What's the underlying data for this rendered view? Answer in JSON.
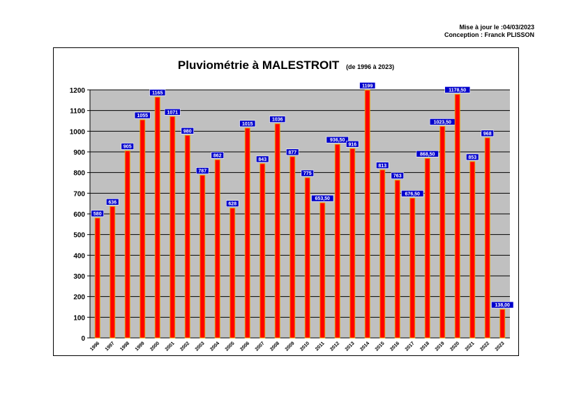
{
  "meta": {
    "updated": "Mise à jour le :04/03/2023",
    "author": "Conception : Franck PLISSON"
  },
  "colors": {
    "plot_bg": "#c0c0c0",
    "bar_fill": "#ff0000",
    "bar_stroke": "#e8a000",
    "label_bg": "#0000cc",
    "label_text": "#ffffff",
    "grid": "#000000"
  },
  "chart_data": {
    "type": "bar",
    "title": "Pluviométrie à MALESTROIT",
    "subtitle": "(de 1996 à 2023)",
    "xlabel": "",
    "ylabel": "",
    "ylim": [
      0,
      1200
    ],
    "yticks": [
      0,
      100,
      200,
      300,
      400,
      500,
      600,
      700,
      800,
      900,
      1000,
      1100,
      1200
    ],
    "grid": true,
    "categories": [
      "1996",
      "1997",
      "1998",
      "1999",
      "2000",
      "2001",
      "2002",
      "2003",
      "2004",
      "2005",
      "2006",
      "2007",
      "2008",
      "2009",
      "2010",
      "2011",
      "2012",
      "2013",
      "2014",
      "2015",
      "2016",
      "2017",
      "2018",
      "2019",
      "2020",
      "2021",
      "2022",
      "2023"
    ],
    "values": [
      580,
      636,
      905,
      1055,
      1165,
      1071,
      980,
      787,
      862,
      628,
      1015,
      843,
      1036,
      877,
      775,
      653.5,
      936.5,
      916,
      1199,
      813,
      763,
      676.5,
      868.5,
      1023.5,
      1178.5,
      853,
      968,
      138
    ],
    "data_labels": [
      "580",
      "636",
      "905",
      "1055",
      "1165",
      "1071",
      "980",
      "787",
      "862",
      "628",
      "1015",
      "843",
      "1036",
      "877",
      "775",
      "653,50",
      "936,50",
      "916",
      "1199",
      "813",
      "763",
      "676,50",
      "868,50",
      "1023,50",
      "1178,50",
      "853",
      "968",
      "138,00"
    ]
  }
}
